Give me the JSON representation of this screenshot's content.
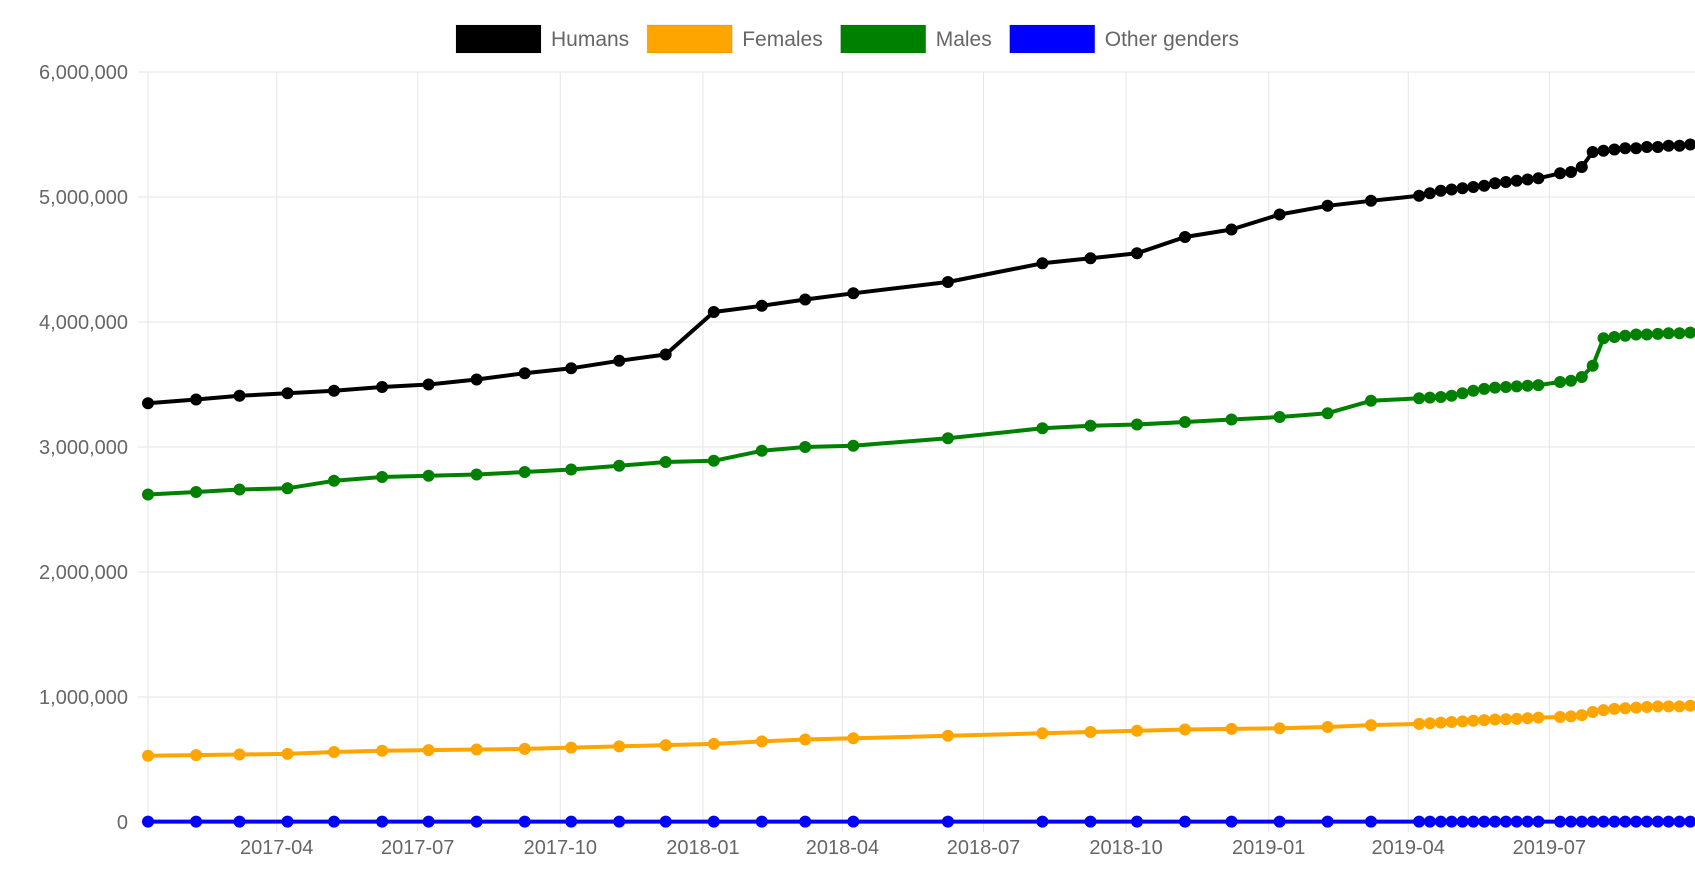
{
  "chart_data": {
    "type": "line",
    "title": "",
    "xlabel": "",
    "ylabel": "",
    "x_ticks": [
      "2017-04",
      "2017-07",
      "2017-10",
      "2018-01",
      "2018-04",
      "2018-07",
      "2018-10",
      "2019-01",
      "2019-04",
      "2019-07"
    ],
    "y_ticks": [
      "0",
      "1,000,000",
      "2,000,000",
      "3,000,000",
      "4,000,000",
      "5,000,000",
      "6,000,000"
    ],
    "ylim": [
      0,
      6000000
    ],
    "xlim": [
      "2017-01-08",
      "2019-10-03"
    ],
    "grid": true,
    "legend_position": "top",
    "x": [
      "2017-01-08",
      "2017-02-08",
      "2017-03-08",
      "2017-04-08",
      "2017-05-08",
      "2017-06-08",
      "2017-07-08",
      "2017-08-08",
      "2017-09-08",
      "2017-10-08",
      "2017-11-08",
      "2017-12-08",
      "2018-01-08",
      "2018-02-08",
      "2018-03-08",
      "2018-04-08",
      "2018-06-08",
      "2018-08-08",
      "2018-09-08",
      "2018-10-08",
      "2018-11-08",
      "2018-12-08",
      "2019-01-08",
      "2019-02-08",
      "2019-03-08",
      "2019-04-08",
      "2019-04-15",
      "2019-04-22",
      "2019-04-29",
      "2019-05-06",
      "2019-05-13",
      "2019-05-20",
      "2019-05-27",
      "2019-06-03",
      "2019-06-10",
      "2019-06-17",
      "2019-06-24",
      "2019-07-08",
      "2019-07-15",
      "2019-07-22",
      "2019-07-29",
      "2019-08-05",
      "2019-08-12",
      "2019-08-19",
      "2019-08-26",
      "2019-09-02",
      "2019-09-09",
      "2019-09-16",
      "2019-09-23",
      "2019-09-30"
    ],
    "series": [
      {
        "name": "Humans",
        "color": "#000000",
        "values": [
          3350000,
          3380000,
          3410000,
          3430000,
          3450000,
          3480000,
          3500000,
          3540000,
          3590000,
          3630000,
          3690000,
          3740000,
          4080000,
          4130000,
          4180000,
          4230000,
          4320000,
          4470000,
          4510000,
          4550000,
          4680000,
          4740000,
          4860000,
          4930000,
          4970000,
          5010000,
          5030000,
          5050000,
          5060000,
          5070000,
          5080000,
          5090000,
          5110000,
          5120000,
          5130000,
          5140000,
          5150000,
          5190000,
          5200000,
          5240000,
          5360000,
          5370000,
          5380000,
          5390000,
          5390000,
          5400000,
          5400000,
          5410000,
          5410000,
          5420000
        ]
      },
      {
        "name": "Females",
        "color": "#ffa500",
        "values": [
          530000,
          535000,
          540000,
          545000,
          560000,
          570000,
          575000,
          580000,
          585000,
          595000,
          605000,
          615000,
          625000,
          645000,
          660000,
          670000,
          690000,
          710000,
          720000,
          730000,
          740000,
          745000,
          750000,
          760000,
          775000,
          785000,
          790000,
          795000,
          800000,
          805000,
          810000,
          815000,
          820000,
          822000,
          825000,
          830000,
          835000,
          840000,
          845000,
          855000,
          880000,
          895000,
          905000,
          910000,
          915000,
          920000,
          925000,
          925000,
          925000,
          930000
        ]
      },
      {
        "name": "Males",
        "color": "#008000",
        "values": [
          2620000,
          2640000,
          2660000,
          2670000,
          2730000,
          2760000,
          2770000,
          2780000,
          2800000,
          2820000,
          2850000,
          2880000,
          2890000,
          2970000,
          3000000,
          3010000,
          3070000,
          3150000,
          3170000,
          3180000,
          3200000,
          3220000,
          3240000,
          3270000,
          3370000,
          3390000,
          3395000,
          3400000,
          3410000,
          3430000,
          3450000,
          3465000,
          3475000,
          3480000,
          3485000,
          3490000,
          3495000,
          3520000,
          3530000,
          3560000,
          3650000,
          3870000,
          3880000,
          3890000,
          3900000,
          3900000,
          3905000,
          3910000,
          3910000,
          3915000
        ]
      },
      {
        "name": "Other genders",
        "color": "#0000ff",
        "values": [
          3000,
          3000,
          3000,
          3000,
          3000,
          3000,
          3000,
          3000,
          3000,
          3000,
          3000,
          3000,
          3000,
          3000,
          3000,
          3000,
          3000,
          3000,
          3000,
          3000,
          3000,
          3000,
          3000,
          3000,
          3000,
          3000,
          3000,
          3000,
          3000,
          3000,
          3000,
          3000,
          3000,
          3000,
          3000,
          3000,
          3000,
          3000,
          3000,
          3000,
          3000,
          3000,
          3000,
          3000,
          3000,
          3000,
          3000,
          3000,
          3000,
          3000
        ]
      }
    ]
  }
}
